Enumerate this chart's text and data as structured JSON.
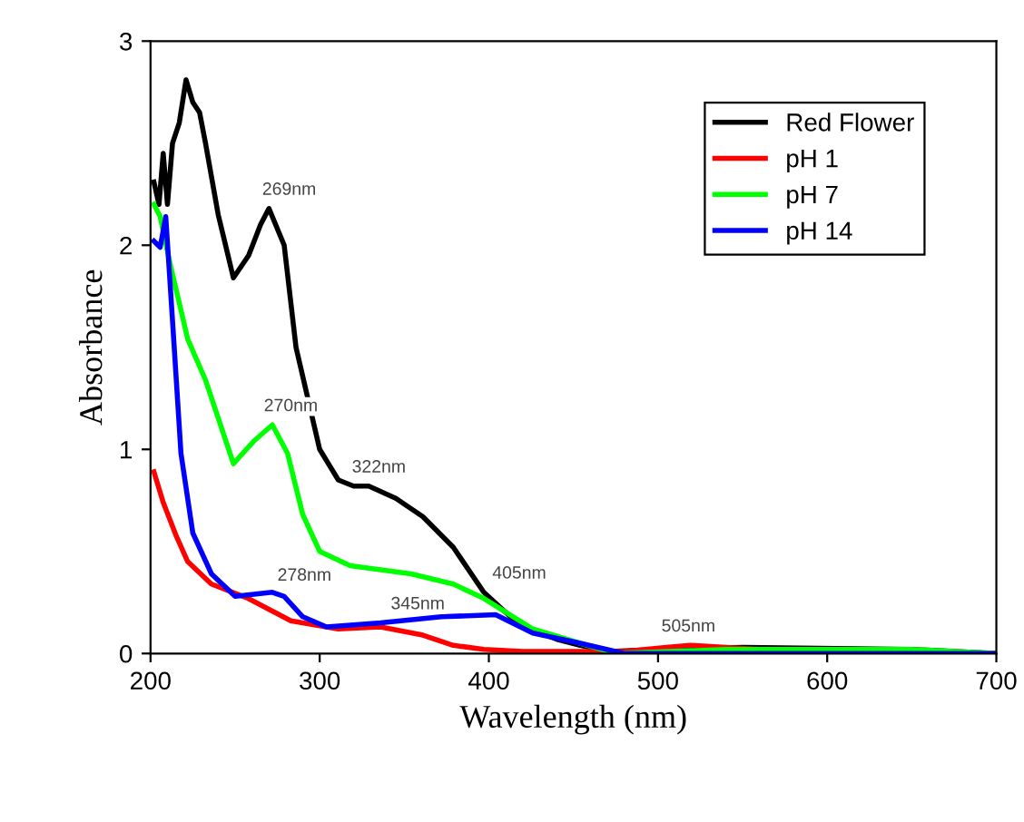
{
  "chart_data": {
    "type": "line",
    "xlabel": "Wavelength (nm)",
    "ylabel": "Absorbance",
    "xlim": [
      200,
      700
    ],
    "xticks": [
      200,
      300,
      400,
      500,
      600,
      700
    ],
    "ylim": [
      0,
      3
    ],
    "yticks": [
      0,
      1,
      2,
      3
    ],
    "legend": "top right",
    "grid": false,
    "series": [
      {
        "name": "Red Flower",
        "color": "#000000",
        "x": [
          202,
          205,
          207.5,
          210,
          213,
          217,
          221,
          225,
          229,
          232.5,
          240,
          249,
          258,
          265,
          270,
          279,
          286,
          300,
          311,
          320,
          329,
          345,
          361,
          379,
          397,
          418,
          440,
          454,
          472,
          500,
          550,
          650,
          700
        ],
        "values": [
          2.31,
          2.2,
          2.45,
          2.2,
          2.5,
          2.6,
          2.81,
          2.7,
          2.65,
          2.5,
          2.15,
          1.84,
          1.95,
          2.1,
          2.18,
          2.0,
          1.5,
          1.0,
          0.85,
          0.82,
          0.82,
          0.76,
          0.67,
          0.52,
          0.3,
          0.14,
          0.07,
          0.04,
          0.01,
          0.02,
          0.03,
          0.02,
          0.0
        ]
      },
      {
        "name": "pH 1",
        "color": "#ff0000",
        "x": [
          202,
          207.5,
          215,
          222,
          236,
          257.6,
          283,
          311,
          336,
          361,
          379,
          397,
          420,
          454,
          480,
          505,
          519,
          540,
          560,
          700
        ],
        "values": [
          0.89,
          0.74,
          0.58,
          0.45,
          0.34,
          0.27,
          0.16,
          0.12,
          0.13,
          0.09,
          0.04,
          0.02,
          0.01,
          0.01,
          0.01,
          0.03,
          0.04,
          0.03,
          0.02,
          0.0
        ]
      },
      {
        "name": "pH 7",
        "color": "#00ff00",
        "x": [
          202,
          205.7,
          211,
          222,
          232.5,
          249,
          261,
          272,
          281,
          290,
          300,
          318,
          354,
          379,
          397,
          426,
          454,
          475,
          540,
          650,
          700
        ],
        "values": [
          2.2,
          2.14,
          1.93,
          1.54,
          1.34,
          0.93,
          1.04,
          1.12,
          0.98,
          0.68,
          0.5,
          0.43,
          0.39,
          0.34,
          0.27,
          0.12,
          0.05,
          0.0,
          0.02,
          0.02,
          0.0
        ]
      },
      {
        "name": "pH 14",
        "color": "#0000ff",
        "x": [
          202,
          205.7,
          209,
          213,
          218,
          225,
          236,
          250,
          272,
          279,
          290,
          304,
          336,
          372,
          404,
          426,
          454,
          480,
          700
        ],
        "values": [
          2.02,
          1.99,
          2.14,
          1.63,
          0.98,
          0.59,
          0.39,
          0.28,
          0.3,
          0.28,
          0.18,
          0.13,
          0.15,
          0.18,
          0.19,
          0.1,
          0.05,
          0.0,
          0.0
        ]
      }
    ],
    "annotations": [
      {
        "text": "269nm",
        "x": 269,
        "y": 2.18
      },
      {
        "text": "270nm",
        "x": 270,
        "y": 1.12
      },
      {
        "text": "322nm",
        "x": 322,
        "y": 0.82
      },
      {
        "text": "278nm",
        "x": 278,
        "y": 0.29
      },
      {
        "text": "345nm",
        "x": 345,
        "y": 0.15
      },
      {
        "text": "405nm",
        "x": 405,
        "y": 0.3
      },
      {
        "text": "505nm",
        "x": 505,
        "y": 0.04
      }
    ]
  }
}
